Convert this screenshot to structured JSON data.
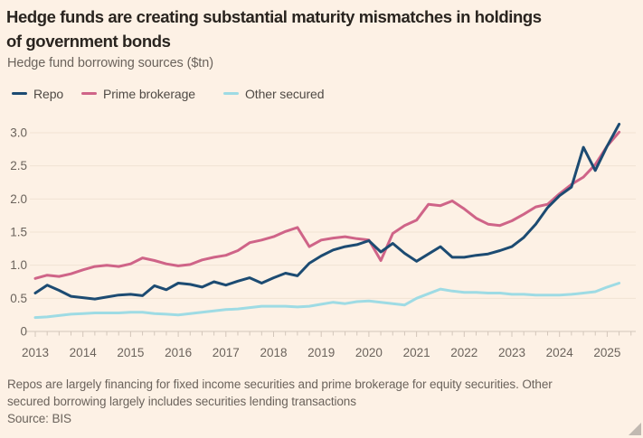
{
  "header": {
    "title_lines": [
      "Hedge funds are creating substantial maturity mismatches in holdings",
      "of government bonds"
    ],
    "subtitle": "Hedge fund borrowing sources ($tn)"
  },
  "legend": [
    {
      "label": "Repo",
      "color": "#1c4b72"
    },
    {
      "label": "Prime brokerage",
      "color": "#cf6488"
    },
    {
      "label": "Other secured",
      "color": "#9edbe4"
    }
  ],
  "colors": {
    "background": "#fdf1e5",
    "title_text": "#29241f",
    "muted_text": "#6b635c",
    "gridline": "#f1e3d4",
    "axis_line": "#d3c6ba"
  },
  "chart_data": {
    "type": "line",
    "title": "Hedge fund borrowing sources ($tn)",
    "x_start": 2013,
    "x_step": 0.25,
    "x_end": 2025.25,
    "x_tick_labels": [
      "2013",
      "2014",
      "2015",
      "2016",
      "2017",
      "2018",
      "2019",
      "2020",
      "2021",
      "2022",
      "2023",
      "2024",
      "2025"
    ],
    "y_ticks": [
      0,
      0.5,
      1.0,
      1.5,
      2.0,
      2.5,
      3.0
    ],
    "y_tick_labels": [
      "0",
      "0.5",
      "1.0",
      "1.5",
      "2.0",
      "2.5",
      "3.0"
    ],
    "ylim": [
      0,
      3.3
    ],
    "grid": "horizontal",
    "legend_position": "top-left",
    "series": [
      {
        "name": "Repo",
        "color": "#1c4b72",
        "values": [
          0.58,
          0.7,
          0.62,
          0.53,
          0.51,
          0.49,
          0.52,
          0.55,
          0.56,
          0.54,
          0.69,
          0.63,
          0.73,
          0.71,
          0.67,
          0.75,
          0.7,
          0.76,
          0.81,
          0.73,
          0.81,
          0.88,
          0.84,
          1.03,
          1.14,
          1.23,
          1.28,
          1.31,
          1.37,
          1.2,
          1.33,
          1.18,
          1.06,
          1.17,
          1.28,
          1.12,
          1.12,
          1.15,
          1.17,
          1.22,
          1.28,
          1.42,
          1.62,
          1.87,
          2.05,
          2.18,
          2.78,
          2.43,
          2.8,
          3.13
        ]
      },
      {
        "name": "Prime brokerage",
        "color": "#cf6488",
        "values": [
          0.8,
          0.85,
          0.83,
          0.87,
          0.93,
          0.98,
          1.0,
          0.98,
          1.02,
          1.11,
          1.07,
          1.02,
          0.99,
          1.01,
          1.08,
          1.12,
          1.15,
          1.22,
          1.34,
          1.38,
          1.43,
          1.51,
          1.57,
          1.28,
          1.38,
          1.41,
          1.43,
          1.4,
          1.38,
          1.07,
          1.48,
          1.6,
          1.68,
          1.92,
          1.9,
          1.97,
          1.85,
          1.71,
          1.62,
          1.6,
          1.67,
          1.77,
          1.88,
          1.92,
          2.08,
          2.22,
          2.33,
          2.52,
          2.8,
          3.01
        ]
      },
      {
        "name": "Other secured",
        "color": "#9edbe4",
        "values": [
          0.21,
          0.22,
          0.24,
          0.26,
          0.27,
          0.28,
          0.28,
          0.28,
          0.29,
          0.29,
          0.27,
          0.26,
          0.25,
          0.27,
          0.29,
          0.31,
          0.33,
          0.34,
          0.36,
          0.38,
          0.38,
          0.38,
          0.37,
          0.38,
          0.41,
          0.44,
          0.42,
          0.45,
          0.46,
          0.44,
          0.42,
          0.4,
          0.5,
          0.57,
          0.64,
          0.61,
          0.59,
          0.59,
          0.58,
          0.58,
          0.56,
          0.56,
          0.55,
          0.55,
          0.55,
          0.56,
          0.58,
          0.6,
          0.67,
          0.73
        ]
      }
    ]
  },
  "footer": {
    "note_lines": [
      "Repos are largely financing for fixed income securities and prime brokerage for equity securities. Other",
      "secured borrowing largely includes securities lending transactions"
    ],
    "source": "Source: BIS"
  }
}
